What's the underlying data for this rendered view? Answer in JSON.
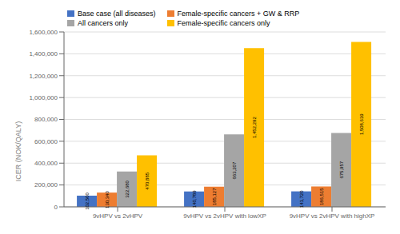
{
  "chart_data": {
    "type": "bar",
    "categories": [
      "9vHPV vs 2vHPV",
      "9vHPV vs 2vHPV with lowXP",
      "9vHPV vs 2vHPV with highXP"
    ],
    "series": [
      {
        "name": "Base case (all diseases)",
        "color": "#4472C4",
        "values": [
          102500,
          140789,
          141720
        ],
        "value_labels": [
          "102,500",
          "140,789",
          "141,720"
        ]
      },
      {
        "name": "Female-specific cancers + GW & RRP",
        "color": "#ED7D31",
        "values": [
          130340,
          185127,
          186515
        ],
        "value_labels": [
          "130,340",
          "185,127",
          "186,515"
        ]
      },
      {
        "name": "All cancers only",
        "color": "#A5A5A5",
        "values": [
          322680,
          663207,
          675957
        ],
        "value_labels": [
          "322,680",
          "663,207",
          "675,957"
        ]
      },
      {
        "name": "Female-specific cancers only",
        "color": "#FFC000",
        "values": [
          470885,
          1452292,
          1508639
        ],
        "value_labels": [
          "470,885",
          "1,452,292",
          "1,508,639"
        ]
      }
    ],
    "ylabel": "ICER (NOK/QALY)",
    "ylim": [
      0,
      1600000
    ],
    "yticks": [
      0,
      {
        "value": 200000,
        "label": "200,000"
      },
      {
        "value": 400000,
        "label": "400,000"
      },
      {
        "value": 600000,
        "label": "600,000"
      },
      {
        "value": 800000,
        "label": "800,000"
      },
      {
        "value": 1000000,
        "label": "1,000,000"
      },
      {
        "value": 1200000,
        "label": "1,200,000"
      },
      {
        "value": 1400000,
        "label": "1,400,000"
      },
      {
        "value": 1600000,
        "label": "1,600,000"
      }
    ],
    "grid": true,
    "legend": "upper left",
    "data_labels": true
  }
}
